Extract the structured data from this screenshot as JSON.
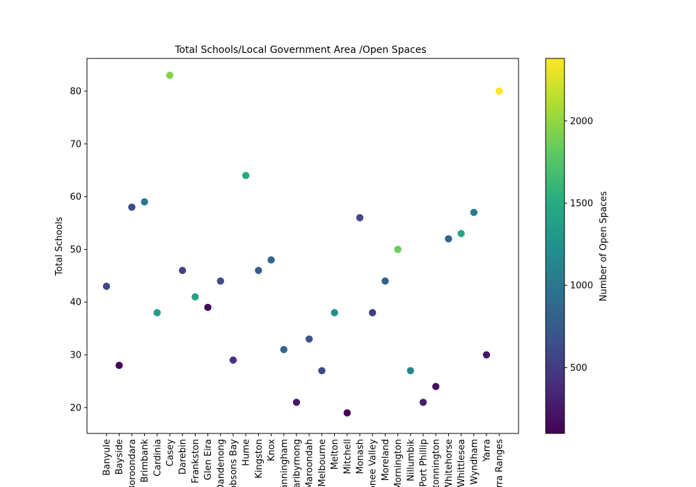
{
  "chart_data": {
    "type": "scatter",
    "title": "Total Schools/Local Government Area /Open Spaces",
    "xlabel": "",
    "ylabel": "Total Schools",
    "colorbar_label": "Number of Open Spaces",
    "colormap": "viridis",
    "color_range": [
      100,
      2380
    ],
    "colorbar_ticks": [
      500,
      1000,
      1500,
      2000
    ],
    "ylim": [
      15.1,
      86.2
    ],
    "yticks": [
      20,
      30,
      40,
      50,
      60,
      70,
      80
    ],
    "grid": false,
    "categories": [
      "Banyule",
      "Bayside",
      "Boroondara",
      "Brimbank",
      "Cardinia",
      "Casey",
      "Darebin",
      "Frankston",
      "Glen Eira",
      "Greater Dandenong",
      "Hobsons Bay",
      "Hume",
      "Kingston",
      "Knox",
      "Manningham",
      "Maribyrnong",
      "Maroondah",
      "Melbourne",
      "Melton",
      "Mitchell",
      "Monash",
      "Moonee Valley",
      "Moreland",
      "Mornington",
      "Nillumbik",
      "Port Phillip",
      "Stonnington",
      "Whitehorse",
      "Whittlesea",
      "Wyndham",
      "Yarra",
      "Yarra Ranges"
    ],
    "tick_labels": [
      "Banyule",
      "Bayside",
      "Boroondara",
      "Brimbank",
      "Cardinia",
      "Casey",
      "Darebin",
      "Frankston",
      "Glen Eira",
      "Dandenong",
      "Hobsons Bay",
      "Hume",
      "Kingston",
      "Knox",
      "Manningham",
      "Maribyrnong",
      "Maroondah",
      "Melbourne",
      "Melton",
      "Mitchell",
      "Monash",
      "Moonee Valley",
      "Moreland",
      "Mornington",
      "Nillumbik",
      "Port Phillip",
      "Stonnington",
      "Whitehorse",
      "Whittlesea",
      "Wyndham",
      "Yarra",
      "Yarra Ranges"
    ],
    "values": [
      43,
      28,
      58,
      59,
      38,
      83,
      46,
      41,
      39,
      44,
      29,
      64,
      46,
      48,
      31,
      21,
      33,
      27,
      38,
      19,
      56,
      38,
      44,
      50,
      27,
      21,
      24,
      52,
      53,
      57,
      30,
      80
    ],
    "open_spaces": [
      600,
      120,
      620,
      1000,
      1350,
      1950,
      550,
      1400,
      150,
      650,
      400,
      1500,
      750,
      850,
      850,
      250,
      700,
      600,
      1200,
      110,
      600,
      500,
      800,
      1850,
      1150,
      300,
      200,
      850,
      1450,
      1050,
      250,
      2380
    ]
  }
}
